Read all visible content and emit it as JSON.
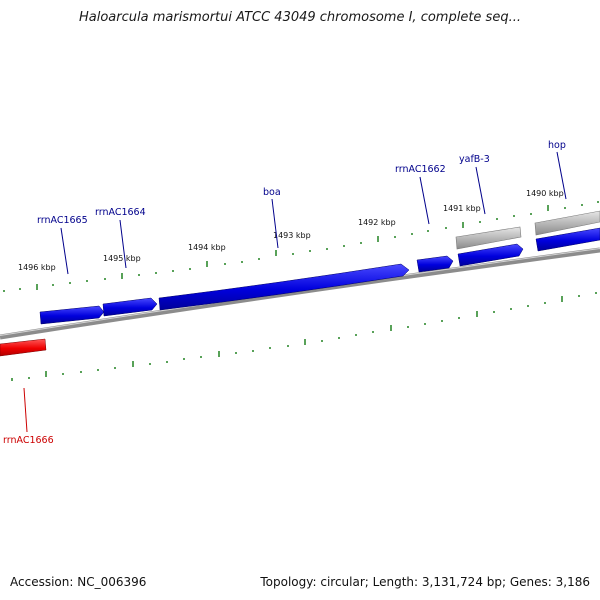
{
  "title": "Haloarcula marismortui ATCC 43049 chromosome I, complete seq...",
  "footer": {
    "accession": "Accession: NC_006396",
    "summary": "Topology: circular; Length: 3,131,724 bp; Genes: 3,186"
  },
  "colors": {
    "forward_gene": "#0000dd",
    "reverse_gene": "#dd0000",
    "other_feature": "#aaaaaa",
    "backbone": "#888888",
    "tick": "#2f8a2f",
    "forward_label": "#00008b",
    "reverse_label": "#cc0000"
  },
  "kbp_labels": [
    "1496 kbp",
    "1495 kbp",
    "1494 kbp",
    "1493 kbp",
    "1492 kbp",
    "1491 kbp",
    "1490 kbp"
  ],
  "gene_labels": [
    {
      "text": "rrnAC1665",
      "strand": "forward"
    },
    {
      "text": "rrnAC1664",
      "strand": "forward"
    },
    {
      "text": "boa",
      "strand": "forward"
    },
    {
      "text": "rrnAC1662",
      "strand": "forward"
    },
    {
      "text": "yafB-3",
      "strand": "forward"
    },
    {
      "text": "hop",
      "strand": "forward"
    },
    {
      "text": "rrnAC1666",
      "strand": "reverse"
    }
  ]
}
